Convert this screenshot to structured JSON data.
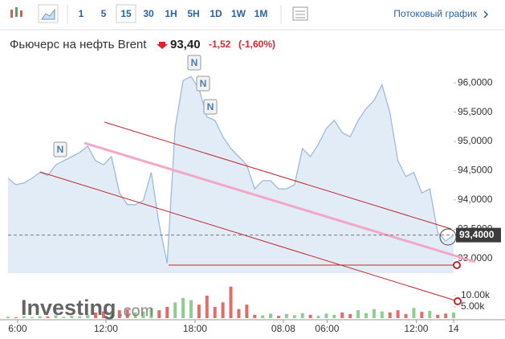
{
  "toolbar": {
    "intervals": [
      "1",
      "5",
      "15",
      "30",
      "1H",
      "5H",
      "1D",
      "1W",
      "1M"
    ],
    "stream_label": "Потоковый график"
  },
  "header": {
    "title": "Фьючерс на нефть Brent",
    "price": "93,40",
    "change": "-1,52",
    "change_pct": "(-1,60%)"
  },
  "chart_data": {
    "type": "area",
    "x": [
      0,
      1,
      2,
      3,
      4,
      5,
      6,
      7,
      8,
      9,
      10,
      11,
      12,
      13,
      14,
      15,
      16,
      17,
      18,
      19,
      20,
      21,
      22,
      23,
      24,
      25,
      26,
      27,
      28,
      29,
      30,
      31,
      32,
      33,
      34,
      35,
      36,
      37,
      38,
      39,
      40,
      41,
      42,
      43,
      44,
      45,
      46,
      47,
      48,
      49,
      50,
      51,
      52,
      53,
      54,
      55,
      56
    ],
    "series": [
      {
        "color": "#9cbbd9",
        "fill": "#e1ecf7",
        "values": [
          94.37,
          94.26,
          94.29,
          94.37,
          94.47,
          94.42,
          94.6,
          94.67,
          94.74,
          94.81,
          94.92,
          94.67,
          94.6,
          94.74,
          94.12,
          93.92,
          93.92,
          93.99,
          94.47,
          93.58,
          92.92,
          95.22,
          96.04,
          96.11,
          95.9,
          95.42,
          95.36,
          95.08,
          94.88,
          94.74,
          94.6,
          94.19,
          94.33,
          94.33,
          94.19,
          94.19,
          94.26,
          94.88,
          94.74,
          94.95,
          95.22,
          95.36,
          95.15,
          95.08,
          95.36,
          95.56,
          95.7,
          95.97,
          95.49,
          94.67,
          94.4,
          94.47,
          94.12,
          94.19,
          93.44,
          93.3,
          93.4
        ]
      },
      {
        "axis": "volume",
        "color_up": "#7cc47f",
        "color_down": "#d9534f",
        "values": [
          600,
          400,
          800,
          500,
          900,
          700,
          1200,
          600,
          1000,
          800,
          1500,
          2500,
          3000,
          2000,
          3500,
          4000,
          2500,
          3000,
          4500,
          3500,
          5000,
          7000,
          9000,
          8000,
          6000,
          10000,
          5000,
          7000,
          14000,
          4000,
          6000,
          1500,
          1200,
          2000,
          1000,
          1800,
          1300,
          2200,
          1500,
          1000,
          2000,
          1500,
          2500,
          1800,
          3500,
          2200,
          4000,
          3000,
          2500,
          3500,
          1800,
          4500,
          2800,
          3200,
          1500,
          2000,
          2500
        ]
      }
    ],
    "xlim": [
      0,
      56
    ],
    "xticks": [
      {
        "value": 1.2,
        "label": "6:00"
      },
      {
        "value": 12.3,
        "label": "12:00"
      },
      {
        "value": 23.5,
        "label": "18:00"
      },
      {
        "value": 34.6,
        "label": "08.08"
      },
      {
        "value": 40.1,
        "label": "06:00"
      },
      {
        "value": 51.3,
        "label": "12:00"
      },
      {
        "value": 56,
        "label": "14"
      }
    ],
    "ylim": [
      92.75,
      96.25
    ],
    "yticks": [
      {
        "value": 93,
        "label": "93,0000"
      },
      {
        "value": 93.5,
        "label": "93,5000"
      },
      {
        "value": 94,
        "label": "94,0000"
      },
      {
        "value": 94.5,
        "label": "94,5000"
      },
      {
        "value": 95,
        "label": "95,0000"
      },
      {
        "value": 95.5,
        "label": "95,5000"
      },
      {
        "value": 96,
        "label": "96,0000"
      }
    ],
    "vol_ylim": [
      0,
      20000
    ],
    "vol_yticks": [
      {
        "value": 5000,
        "label": "5.00k"
      },
      {
        "value": 10000,
        "label": "10.00k"
      }
    ],
    "last_price": {
      "value": 93.4,
      "label": "93,4000"
    },
    "news_markers": [
      "N",
      "N",
      "N",
      "N"
    ],
    "watermark": [
      "Investing",
      ".com"
    ],
    "grid": false
  }
}
